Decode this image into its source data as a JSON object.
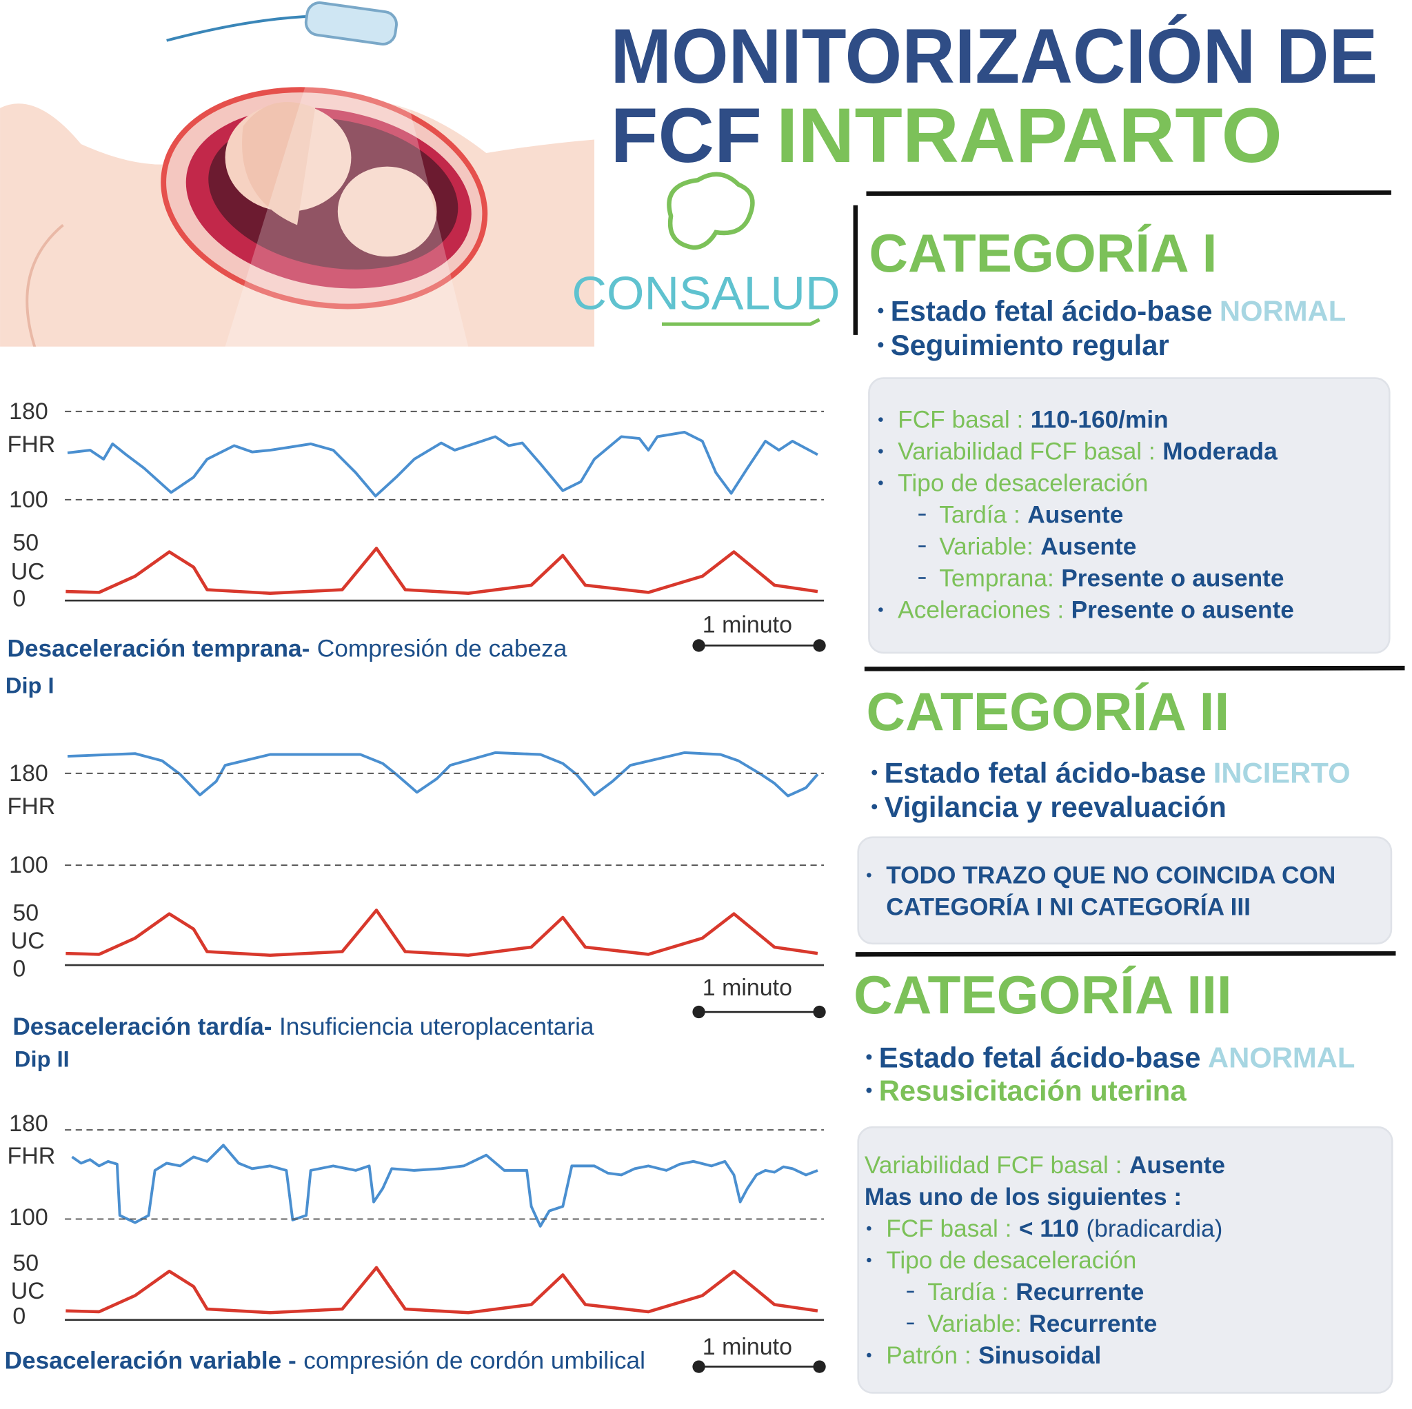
{
  "header": {
    "title_line1": "MONITORIZACIÓN DE",
    "title_line2a": "FCF",
    "title_line2b": "INTRAPARTO"
  },
  "logo": "CONSALUD",
  "traces": [
    {
      "ticks": [
        "180",
        "100",
        "50",
        "0"
      ],
      "fhr_label": "FHR",
      "uc_label": "UC",
      "scale": "1 minuto",
      "caption_bold": "Desaceleración temprana-",
      "caption": "Compresión de cabeza",
      "dip": "Dip I"
    },
    {
      "ticks": [
        "180",
        "100",
        "50",
        "0"
      ],
      "fhr_label": "FHR",
      "uc_label": "UC",
      "scale": "1 minuto",
      "caption_bold": "Desaceleración tardía-",
      "caption": "Insuficiencia uteroplacentaria",
      "dip": "Dip II"
    },
    {
      "ticks": [
        "180",
        "100",
        "50",
        "0"
      ],
      "fhr_label": "FHR",
      "uc_label": "UC",
      "scale": "1 minuto",
      "caption_bold": "Desaceleración variable -",
      "caption": "compresión de cordón umbilical"
    }
  ],
  "categories": [
    {
      "title": "CATEGORÍA I",
      "bullets": [
        {
          "text": "Estado fetal ácido-base",
          "highlight": "NORMAL"
        },
        {
          "text": "Seguimiento regular"
        }
      ],
      "box": {
        "items": [
          {
            "label": "FCF basal  :",
            "value": "110-160/min"
          },
          {
            "label": "Variabilidad FCF basal :",
            "value": "Moderada"
          },
          {
            "label": "Tipo de desaceleración",
            "items": [
              {
                "label": "Tardía :",
                "value": "Ausente"
              },
              {
                "label": "Variable:",
                "value": "Ausente"
              },
              {
                "label": "Temprana:",
                "value": "Presente o ausente"
              }
            ]
          },
          {
            "label": "Aceleraciones :",
            "value": "Presente o ausente"
          }
        ]
      }
    },
    {
      "title": "CATEGORÍA II",
      "bullets": [
        {
          "text": "Estado fetal ácido-base",
          "highlight": "INCIERTO"
        },
        {
          "text": "Vigilancia y reevaluación"
        }
      ],
      "box": {
        "items": [
          {
            "value": "TODO TRAZO QUE NO COINCIDA CON",
            "value_cont": "CATEGORÍA I NI  CATEGORÍA III"
          }
        ]
      }
    },
    {
      "title": "CATEGORÍA III",
      "bullets": [
        {
          "text": "Estado fetal ácido-base",
          "highlight": "ANORMAL"
        },
        {
          "green": "Resusicitación uterina"
        }
      ],
      "box": {
        "intro": [
          {
            "label": "Variabilidad FCF basal :",
            "value": "Ausente"
          },
          {
            "value": "Mas uno de los siguientes :"
          }
        ],
        "items": [
          {
            "label": "FCF basal  :",
            "value": "< 110",
            "note": "(bradicardia)"
          },
          {
            "label": "Tipo de desaceleración",
            "items": [
              {
                "label": "Tardía :",
                "value": "Recurrente"
              },
              {
                "label": "Variable:",
                "value": "Recurrente"
              }
            ]
          },
          {
            "label": "Patrón  :",
            "value": "Sinusoidal"
          }
        ]
      }
    }
  ]
}
